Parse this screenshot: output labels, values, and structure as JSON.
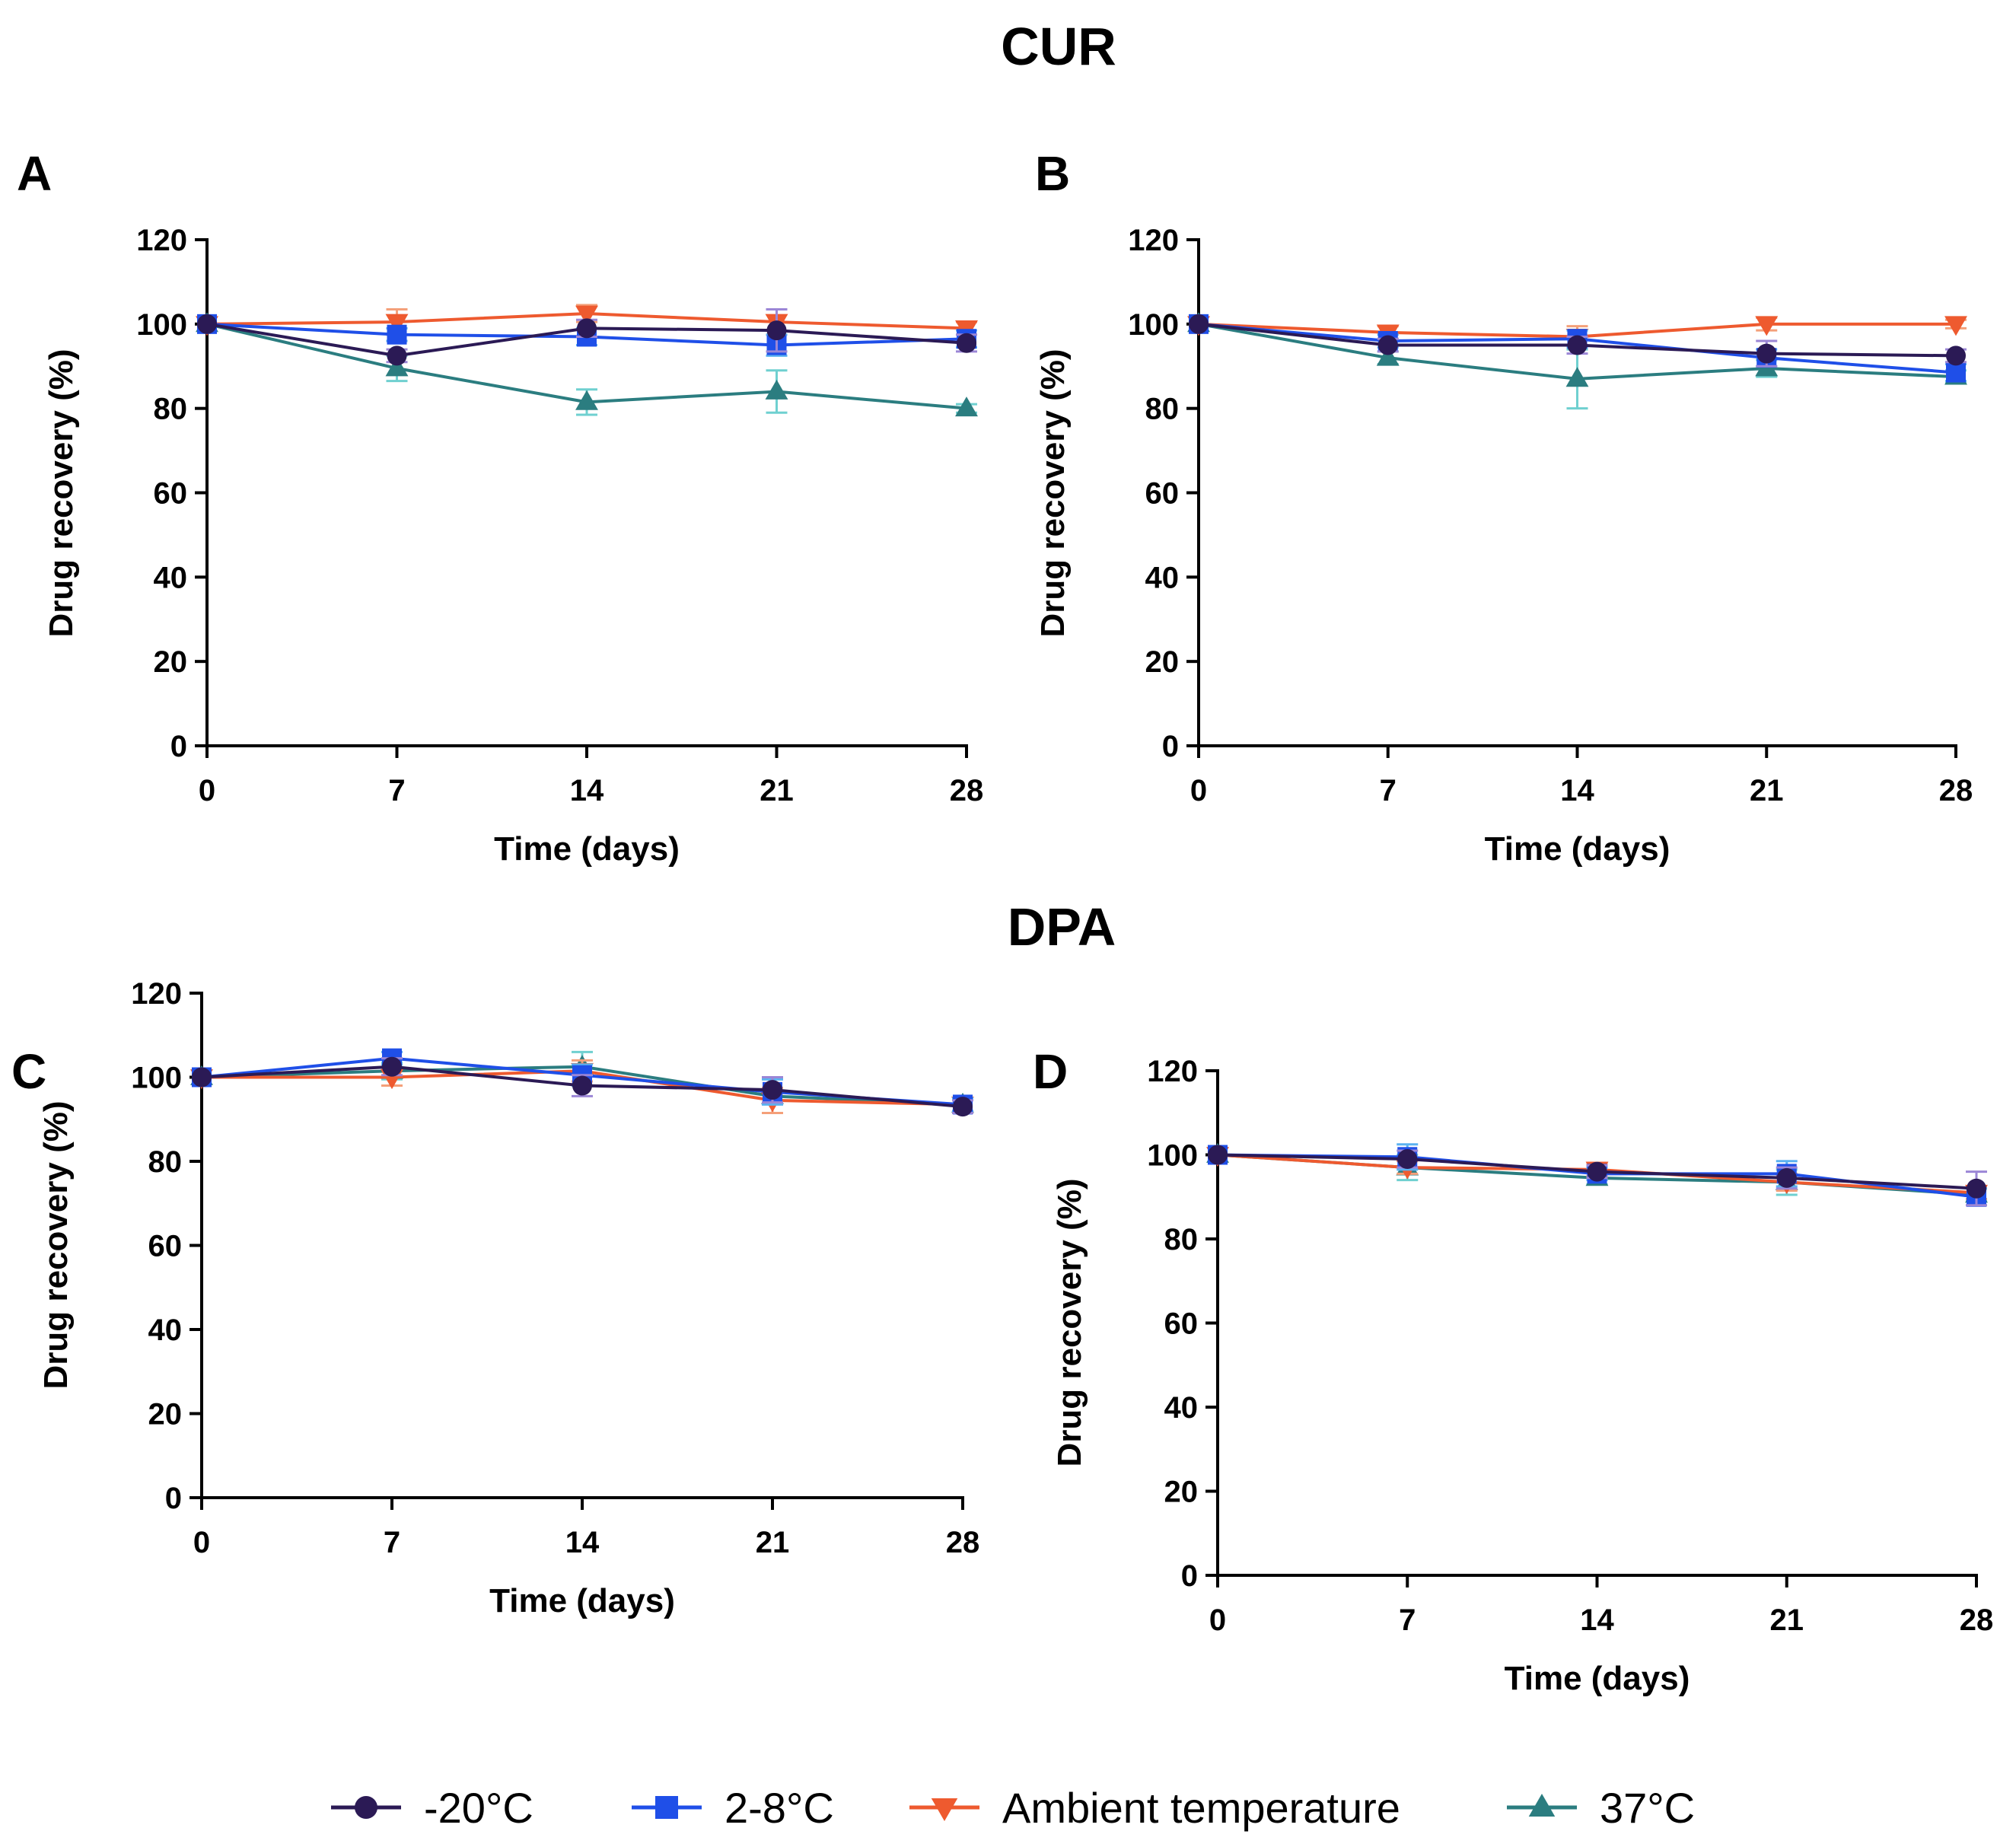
{
  "sections": {
    "top_title": "CUR",
    "bottom_title": "DPA"
  },
  "series_styles": [
    {
      "name": "-20°C",
      "color": "#2b1a55",
      "error_color": "#9b86d6",
      "marker": "circle"
    },
    {
      "name": "2-8°C",
      "color": "#1f4fe8",
      "error_color": "#5bb2f0",
      "marker": "square"
    },
    {
      "name": "Ambient temperature",
      "color": "#ee5a2f",
      "error_color": "#f4a07a",
      "marker": "triangle-down"
    },
    {
      "name": "37°C",
      "color": "#2b7d80",
      "error_color": "#6fd0d0",
      "marker": "triangle-up"
    }
  ],
  "chart_data": [
    {
      "panel": "A",
      "type": "line",
      "section": "CUR",
      "x": [
        0,
        7,
        14,
        21,
        28
      ],
      "xlabel": "Time (days)",
      "ylabel": "Drug recovery (%)",
      "xlim": [
        0,
        28
      ],
      "ylim": [
        0,
        120
      ],
      "xticks": [
        0,
        7,
        14,
        21,
        28
      ],
      "yticks": [
        0,
        20,
        40,
        60,
        80,
        100,
        120
      ],
      "series": [
        {
          "name": "-20°C",
          "values": [
            100,
            92.5,
            99,
            98.5,
            95.5
          ],
          "errors": [
            0,
            1.5,
            2,
            5,
            2
          ]
        },
        {
          "name": "2-8°C",
          "values": [
            100,
            97.5,
            97,
            95,
            96.5
          ],
          "errors": [
            0,
            1.5,
            2,
            2.5,
            2
          ]
        },
        {
          "name": "Ambient temperature",
          "values": [
            100,
            100.5,
            102.5,
            100.5,
            99
          ],
          "errors": [
            0,
            3,
            2,
            3,
            1.5
          ]
        },
        {
          "name": "37°C",
          "values": [
            100,
            89.5,
            81.5,
            84,
            80
          ],
          "errors": [
            0,
            3,
            3,
            5,
            1
          ]
        }
      ]
    },
    {
      "panel": "B",
      "type": "line",
      "section": "CUR",
      "x": [
        0,
        7,
        14,
        21,
        28
      ],
      "xlabel": "Time (days)",
      "ylabel": "Drug recovery (%)",
      "xlim": [
        0,
        28
      ],
      "ylim": [
        0,
        120
      ],
      "xticks": [
        0,
        7,
        14,
        21,
        28
      ],
      "yticks": [
        0,
        20,
        40,
        60,
        80,
        100,
        120
      ],
      "series": [
        {
          "name": "-20°C",
          "values": [
            100,
            95,
            95,
            93,
            92.5
          ],
          "errors": [
            0,
            1.5,
            2,
            3,
            1.5
          ]
        },
        {
          "name": "2-8°C",
          "values": [
            100,
            96,
            96.5,
            92,
            88.5
          ],
          "errors": [
            0,
            1.5,
            2,
            2,
            2
          ]
        },
        {
          "name": "Ambient temperature",
          "values": [
            100,
            98,
            97,
            100,
            100
          ],
          "errors": [
            0,
            1.5,
            2.5,
            1.5,
            1
          ]
        },
        {
          "name": "37°C",
          "values": [
            100,
            92,
            87,
            89.5,
            87.5
          ],
          "errors": [
            0,
            1.5,
            7,
            2,
            1.5
          ]
        }
      ]
    },
    {
      "panel": "C",
      "type": "line",
      "section": "DPA",
      "x": [
        0,
        7,
        14,
        21,
        28
      ],
      "xlabel": "Time (days)",
      "ylabel": "Drug recovery (%)",
      "xlim": [
        0,
        28
      ],
      "ylim": [
        0,
        120
      ],
      "xticks": [
        0,
        7,
        14,
        21,
        28
      ],
      "yticks": [
        0,
        20,
        40,
        60,
        80,
        100,
        120
      ],
      "series": [
        {
          "name": "-20°C",
          "values": [
            100,
            102.5,
            98,
            97,
            93
          ],
          "errors": [
            0,
            2,
            2.5,
            3,
            1.5
          ]
        },
        {
          "name": "2-8°C",
          "values": [
            100,
            104.5,
            100.5,
            96.5,
            93.5
          ],
          "errors": [
            0,
            1.5,
            2.5,
            3,
            1.5
          ]
        },
        {
          "name": "Ambient temperature",
          "values": [
            100,
            100,
            101.5,
            94.5,
            93.5
          ],
          "errors": [
            0,
            2,
            2.5,
            3,
            1.5
          ]
        },
        {
          "name": "37°C",
          "values": [
            100,
            101.5,
            102.5,
            95.5,
            93.5
          ],
          "errors": [
            0,
            2,
            3.5,
            4,
            1.5
          ]
        }
      ]
    },
    {
      "panel": "D",
      "type": "line",
      "section": "DPA",
      "x": [
        0,
        7,
        14,
        21,
        28
      ],
      "xlabel": "Time (days)",
      "ylabel": "Drug recovery (%)",
      "xlim": [
        0,
        28
      ],
      "ylim": [
        0,
        120
      ],
      "xticks": [
        0,
        7,
        14,
        21,
        28
      ],
      "yticks": [
        0,
        20,
        40,
        60,
        80,
        100,
        120
      ],
      "series": [
        {
          "name": "-20°C",
          "values": [
            100,
            99,
            96,
            94.5,
            92
          ],
          "errors": [
            0,
            2,
            1.5,
            2.5,
            4
          ]
        },
        {
          "name": "2-8°C",
          "values": [
            100,
            99.5,
            95.5,
            95.5,
            90
          ],
          "errors": [
            0,
            3,
            1.5,
            3,
            2
          ]
        },
        {
          "name": "Ambient temperature",
          "values": [
            100,
            97,
            96.5,
            93.5,
            91
          ],
          "errors": [
            0,
            1.5,
            1.5,
            2,
            1.5
          ]
        },
        {
          "name": "37°C",
          "values": [
            100,
            97,
            94.5,
            93.5,
            90.5
          ],
          "errors": [
            0,
            3,
            1.5,
            3,
            1.5
          ]
        }
      ]
    }
  ],
  "legend": {
    "placement": "bottom-center",
    "items": [
      "-20°C",
      "2-8°C",
      "Ambient temperature",
      "37°C"
    ]
  }
}
